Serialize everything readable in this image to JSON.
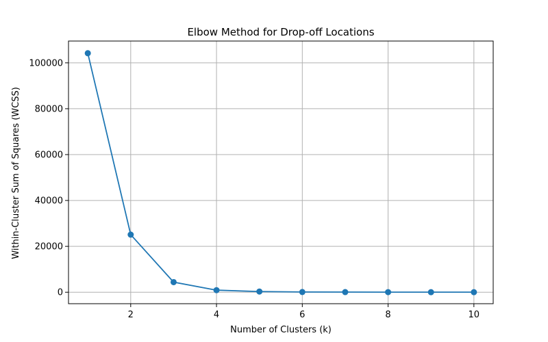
{
  "chart_data": {
    "type": "line",
    "title": "Elbow Method for Drop-off Locations",
    "xlabel": "Number of Clusters (k)",
    "ylabel": "Within-Cluster Sum of Squares (WCSS)",
    "x": [
      1,
      2,
      3,
      4,
      5,
      6,
      7,
      8,
      9,
      10
    ],
    "series": [
      {
        "values": [
          104200,
          25100,
          4400,
          900,
          300,
          100,
          60,
          40,
          30,
          20
        ],
        "color": "#1f77b4",
        "marker": "circle"
      }
    ],
    "xlim": [
      0.55,
      10.45
    ],
    "ylim": [
      -5000,
      109500
    ],
    "xticks": [
      2,
      4,
      6,
      8,
      10
    ],
    "xtick_labels": [
      "2",
      "4",
      "6",
      "8",
      "10"
    ],
    "yticks": [
      0,
      20000,
      40000,
      60000,
      80000,
      100000
    ],
    "ytick_labels": [
      "0",
      "20000",
      "40000",
      "60000",
      "80000",
      "100000"
    ],
    "grid": true,
    "grid_color": "#b0b0b0"
  }
}
